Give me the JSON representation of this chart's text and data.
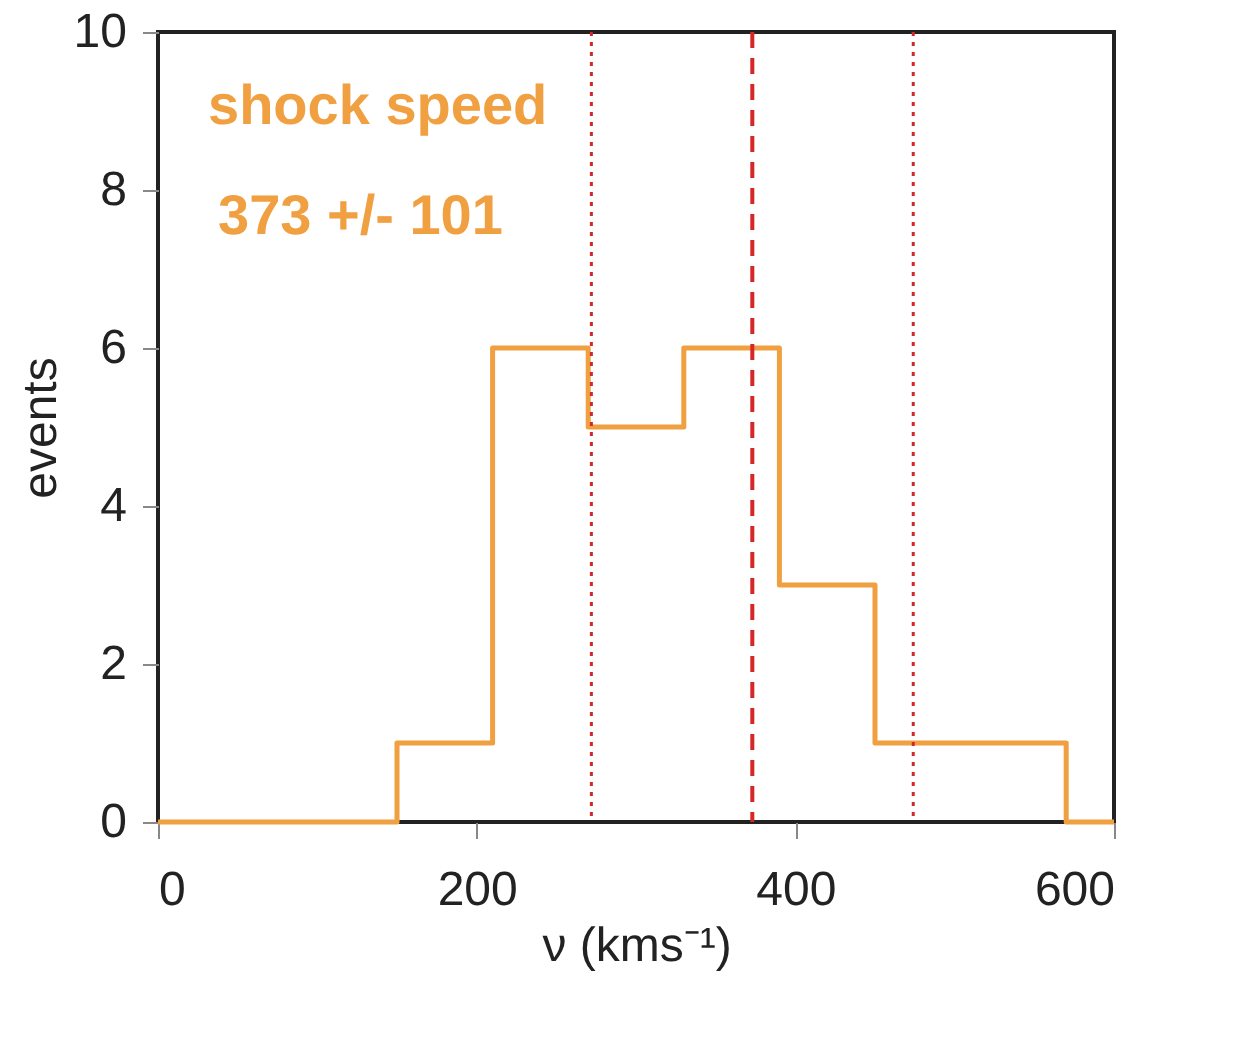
{
  "chart_data": {
    "type": "histogram",
    "xlabel": "ν (kms⁻¹)",
    "ylabel": "events",
    "bins": [
      0,
      150,
      210,
      270,
      330,
      390,
      450,
      510,
      570,
      600
    ],
    "values": [
      0,
      1,
      6,
      5,
      6,
      3,
      1,
      1,
      0
    ],
    "color": "#f0a040",
    "xlim": [
      0,
      600
    ],
    "xticks": [
      0,
      200,
      400,
      600
    ],
    "ylim": [
      0,
      10
    ],
    "yticks": [
      0,
      2,
      4,
      6,
      8,
      10
    ],
    "ref_lines": [
      {
        "axis": "x",
        "value": 373,
        "color": "#d62728",
        "line_style": "dashed"
      },
      {
        "axis": "x",
        "value": 272,
        "color": "#d62728",
        "line_style": "dotted"
      },
      {
        "axis": "x",
        "value": 474,
        "color": "#d62728",
        "line_style": "dotted"
      }
    ],
    "annotations": [
      "shock speed",
      "373 +/- 101"
    ],
    "grid": false
  }
}
